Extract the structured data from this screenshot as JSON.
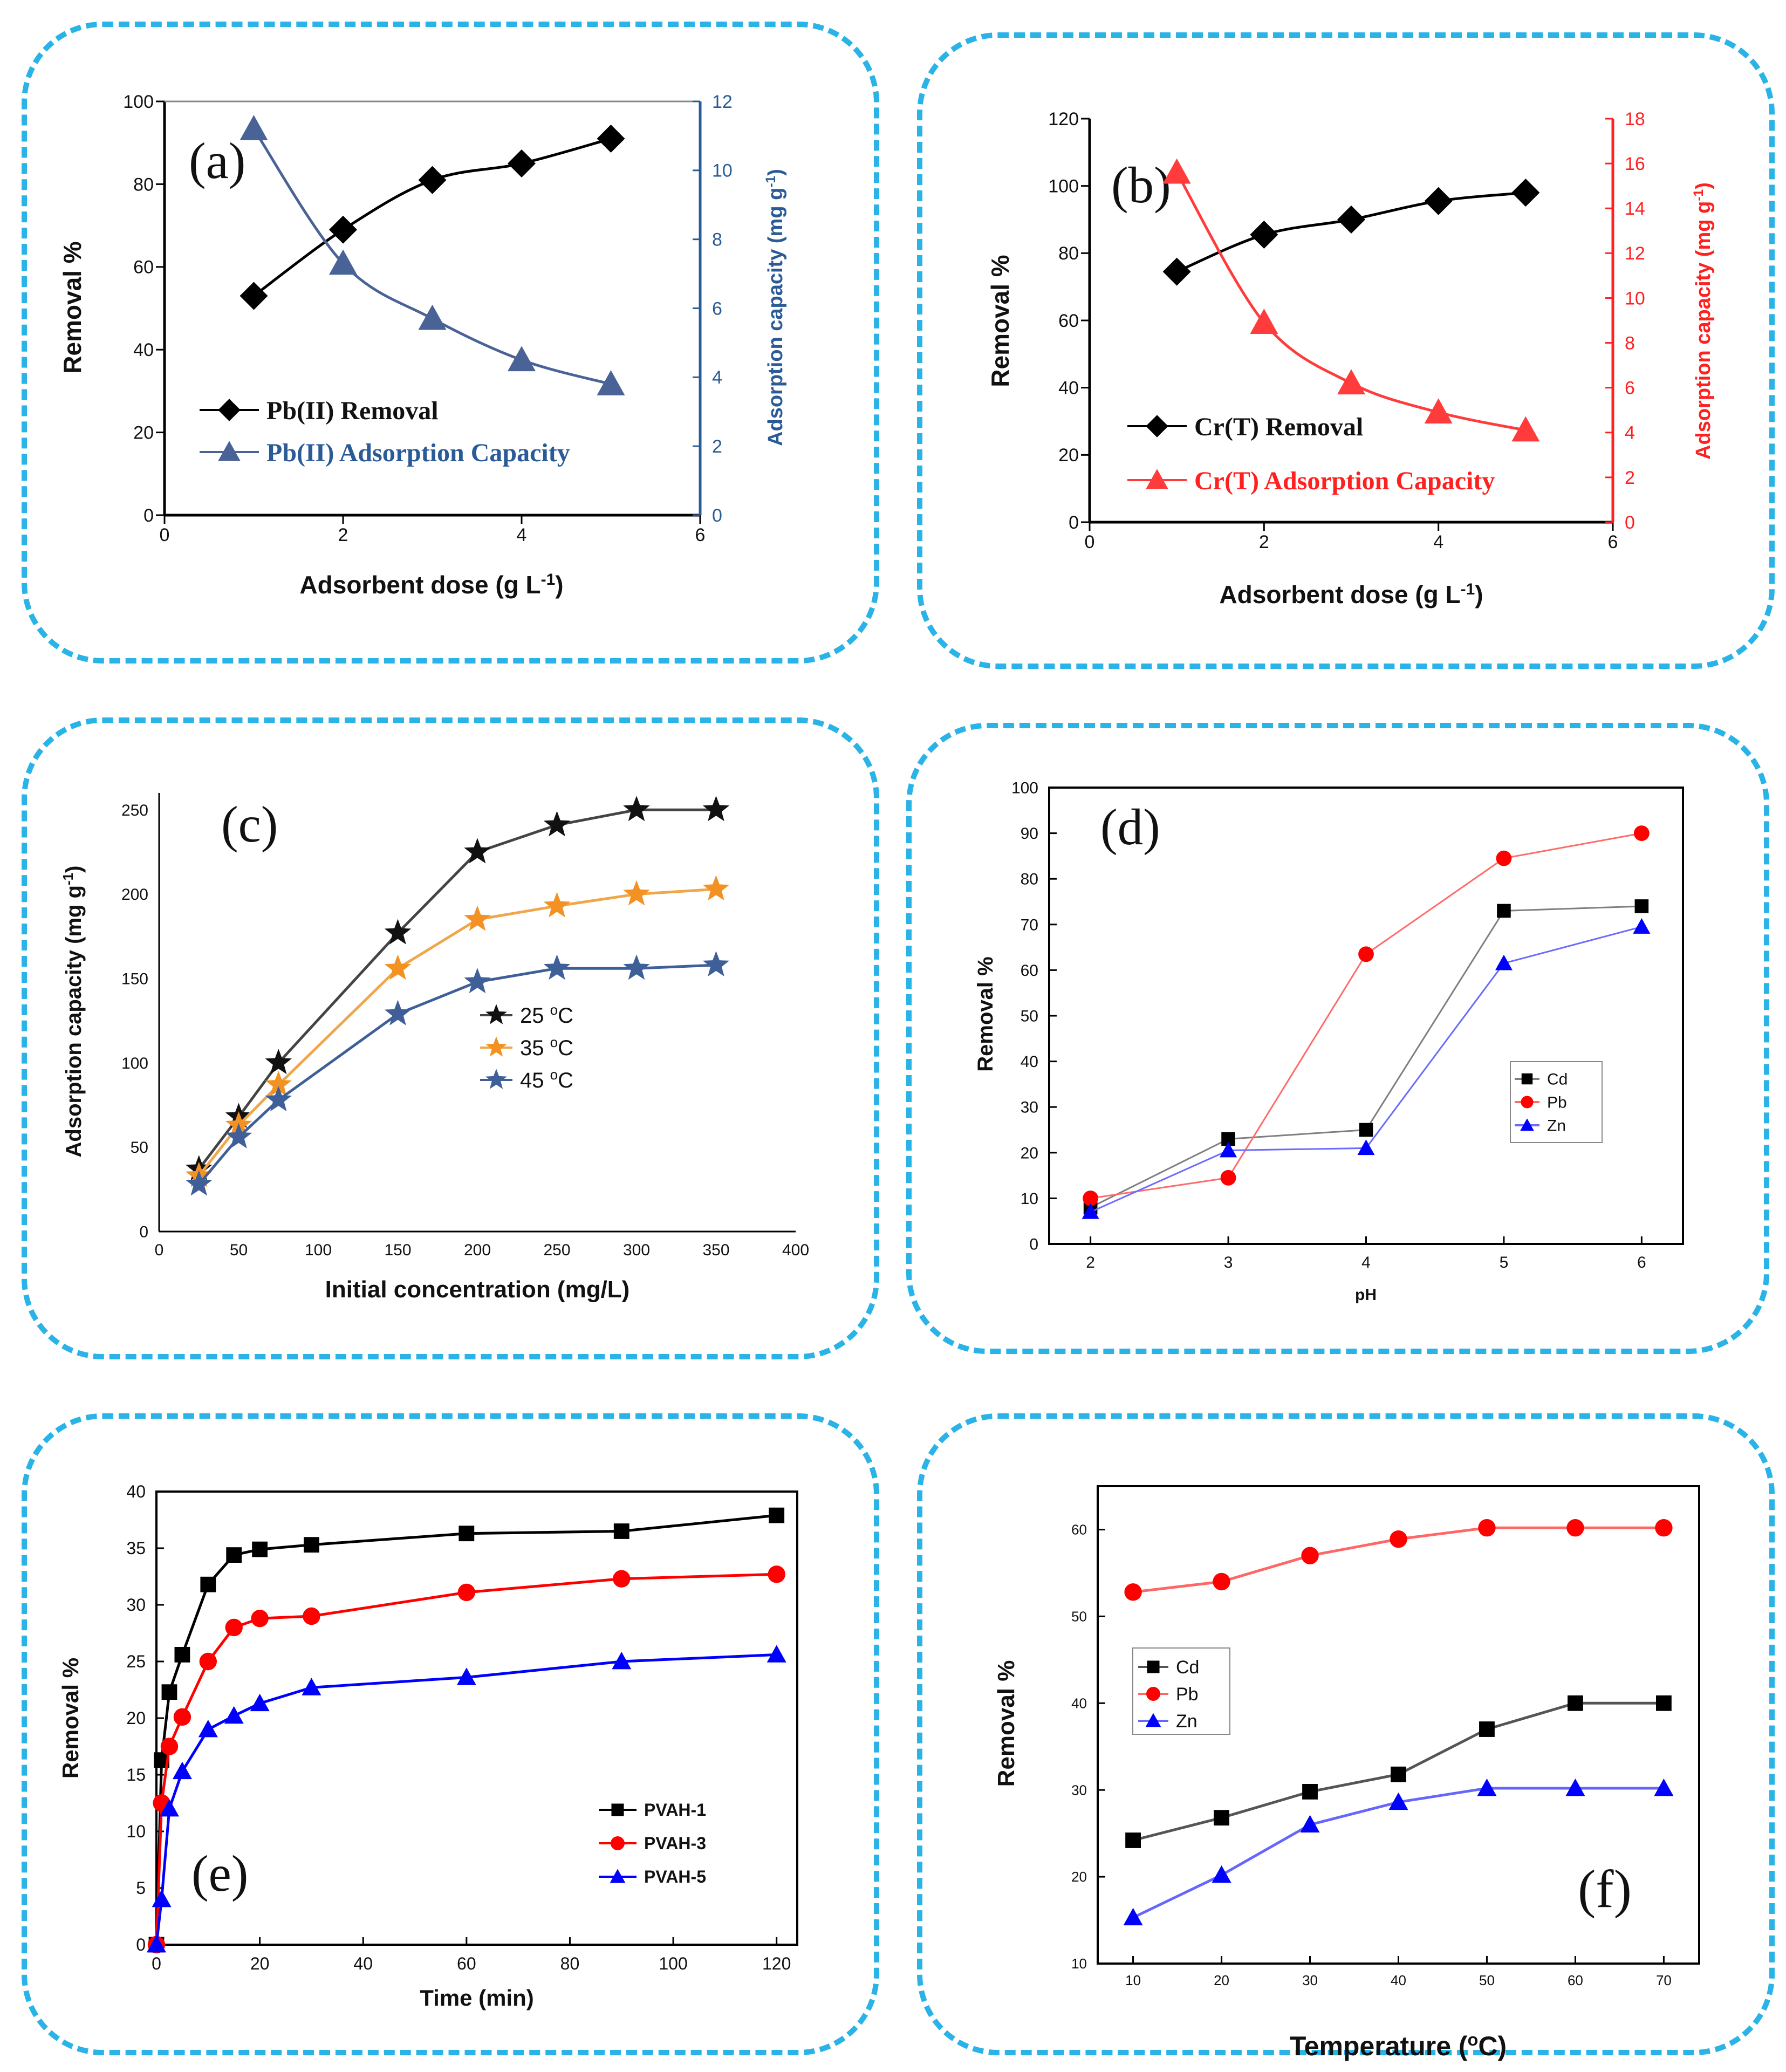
{
  "chart_data": [
    {
      "id": "a",
      "type": "line",
      "panel_label": "(a)",
      "xlabel": "Adsorbent dose (g L⁻¹)",
      "ylabel": "Removal %",
      "ylabel_right": "Adsorption capacity (mg g⁻¹)",
      "xlim": [
        0,
        6
      ],
      "ylim": [
        0,
        100
      ],
      "ylim_right": [
        0,
        12
      ],
      "xticks": [
        0,
        2,
        4,
        6
      ],
      "yticks": [
        0,
        20,
        40,
        60,
        80,
        100
      ],
      "yticks_right": [
        0,
        2,
        4,
        6,
        8,
        10,
        12
      ],
      "series": [
        {
          "name": "Pb(II) Removal",
          "axis": "left",
          "marker": "diamond",
          "color": "#000000",
          "x": [
            1,
            2,
            3,
            4,
            5
          ],
          "y": [
            53,
            69,
            81,
            85,
            91
          ]
        },
        {
          "name": "Pb(II) Adsorption Capacity",
          "axis": "right",
          "marker": "triangle",
          "color": "#4a6396",
          "x": [
            1,
            2,
            3,
            4,
            5
          ],
          "y": [
            11.2,
            7.3,
            5.7,
            4.5,
            3.8
          ]
        }
      ],
      "legend_position": "bottom-left",
      "legend_font": "serif",
      "colors": {
        "right_axis": "#2b5b97"
      }
    },
    {
      "id": "b",
      "type": "line",
      "panel_label": "(b)",
      "xlabel": "Adsorbent dose (g L⁻¹)",
      "ylabel": "Removal %",
      "ylabel_right": "Adsorption capacity (mg g⁻¹)",
      "xlim": [
        0,
        6
      ],
      "ylim": [
        0,
        120
      ],
      "ylim_right": [
        0,
        18
      ],
      "xticks": [
        0,
        2,
        4,
        6
      ],
      "yticks": [
        0,
        20,
        40,
        60,
        80,
        100,
        120
      ],
      "yticks_right": [
        0,
        2,
        4,
        6,
        8,
        10,
        12,
        14,
        16,
        18
      ],
      "series": [
        {
          "name": "Cr(T) Removal",
          "axis": "left",
          "marker": "diamond",
          "color": "#000000",
          "x": [
            1,
            2,
            3,
            4,
            5
          ],
          "y": [
            74.5,
            85.5,
            90,
            95.5,
            98
          ]
        },
        {
          "name": "Cr(T) Adsorption Capacity",
          "axis": "right",
          "marker": "triangle",
          "color": "#ff3b3b",
          "x": [
            1,
            2,
            3,
            4,
            5
          ],
          "y": [
            15.6,
            8.9,
            6.2,
            4.9,
            4.1
          ]
        }
      ],
      "legend_position": "bottom-left",
      "legend_font": "serif",
      "colors": {
        "right_axis": "#ff2020"
      }
    },
    {
      "id": "c",
      "type": "line",
      "panel_label": "(c)",
      "xlabel": "Initial concentration (mg/L)",
      "ylabel": "Adsorption capacity (mg g⁻¹)",
      "xlim": [
        0,
        400
      ],
      "ylim": [
        0,
        260
      ],
      "xticks": [
        0,
        50,
        100,
        150,
        200,
        250,
        300,
        350,
        400
      ],
      "yticks": [
        0,
        50,
        100,
        150,
        200,
        250
      ],
      "series": [
        {
          "name": "25 °C",
          "marker": "star",
          "color": "#444444",
          "marker_color": "#111111",
          "x": [
            25,
            50,
            75,
            150,
            200,
            250,
            300,
            350
          ],
          "y": [
            37,
            68,
            100,
            177,
            225,
            241,
            250,
            250
          ]
        },
        {
          "name": "35 °C",
          "marker": "star",
          "color": "#f0a64a",
          "marker_color": "#f39222",
          "x": [
            25,
            50,
            75,
            150,
            200,
            250,
            300,
            350
          ],
          "y": [
            33,
            63,
            87,
            156,
            185,
            193,
            200,
            203
          ]
        },
        {
          "name": "45 °C",
          "marker": "star",
          "color": "#3f5f99",
          "marker_color": "#3f5f99",
          "x": [
            25,
            50,
            75,
            150,
            200,
            250,
            300,
            350
          ],
          "y": [
            28,
            56,
            78,
            129,
            148,
            156,
            156,
            158
          ]
        }
      ],
      "legend_position": "center",
      "legend_font": "sans"
    },
    {
      "id": "d",
      "type": "line",
      "panel_label": "(d)",
      "xlabel": "pH",
      "ylabel": "Removal %",
      "xlim": [
        1.7,
        6.3
      ],
      "ylim": [
        0,
        100
      ],
      "xticks": [
        2,
        3,
        4,
        5,
        6
      ],
      "yticks": [
        0,
        10,
        20,
        30,
        40,
        50,
        60,
        70,
        80,
        90,
        100
      ],
      "series": [
        {
          "name": "Cd",
          "marker": "square",
          "color": "#7f7f7f",
          "marker_color": "#000000",
          "x": [
            2,
            3,
            4,
            5,
            6
          ],
          "y": [
            8,
            23,
            25,
            73,
            74
          ]
        },
        {
          "name": "Pb",
          "marker": "circle",
          "color": "#ff6b6b",
          "marker_color": "#ff0000",
          "x": [
            2,
            3,
            4,
            5,
            6
          ],
          "y": [
            10,
            14.5,
            63.5,
            84.5,
            90
          ]
        },
        {
          "name": "Zn",
          "marker": "triangle",
          "color": "#6b6bff",
          "marker_color": "#0000ff",
          "x": [
            2,
            3,
            4,
            5,
            6
          ],
          "y": [
            7,
            20.5,
            21,
            61.5,
            69.5
          ]
        }
      ],
      "legend_position": "right",
      "legend_font": "sans"
    },
    {
      "id": "e",
      "type": "line",
      "panel_label": "(e)",
      "xlabel": "Time (min)",
      "ylabel": "Removal %",
      "xlim": [
        0,
        124
      ],
      "ylim": [
        0,
        40
      ],
      "xticks": [
        0,
        20,
        40,
        60,
        80,
        100,
        120
      ],
      "yticks": [
        0,
        5,
        10,
        15,
        20,
        25,
        30,
        35,
        40
      ],
      "series": [
        {
          "name": "PVAH-1",
          "marker": "square",
          "color": "#000000",
          "marker_color": "#000000",
          "x": [
            0,
            1,
            2.5,
            5,
            10,
            15,
            20,
            30,
            60,
            90,
            120
          ],
          "y": [
            0,
            16.3,
            22.3,
            25.6,
            31.8,
            34.4,
            34.9,
            35.3,
            36.3,
            36.5,
            37.9
          ]
        },
        {
          "name": "PVAH-3",
          "marker": "circle",
          "color": "#ff0000",
          "marker_color": "#ff0000",
          "x": [
            0,
            1,
            2.5,
            5,
            10,
            15,
            20,
            30,
            60,
            90,
            120
          ],
          "y": [
            0,
            12.5,
            17.5,
            20.1,
            25,
            28,
            28.8,
            29,
            31.1,
            32.3,
            32.7
          ]
        },
        {
          "name": "PVAH-5",
          "marker": "triangle",
          "color": "#0000ff",
          "marker_color": "#0000ff",
          "x": [
            0,
            1,
            2.5,
            5,
            10,
            15,
            20,
            30,
            60,
            90,
            120
          ],
          "y": [
            0,
            4,
            12,
            15.3,
            19,
            20.2,
            21.3,
            22.7,
            23.6,
            25,
            25.6
          ]
        }
      ],
      "legend_position": "bottom-right",
      "legend_font": "sans"
    },
    {
      "id": "f",
      "type": "line",
      "panel_label": "(f)",
      "xlabel": "Temperature (°C)",
      "ylabel": "Removal %",
      "xlim": [
        6,
        74
      ],
      "ylim": [
        10,
        65
      ],
      "xticks": [
        10,
        20,
        30,
        40,
        50,
        60,
        70
      ],
      "yticks": [
        10,
        20,
        30,
        40,
        50,
        60
      ],
      "series": [
        {
          "name": "Cd",
          "marker": "square",
          "color": "#555555",
          "marker_color": "#000000",
          "x": [
            10,
            20,
            30,
            40,
            50,
            60,
            70
          ],
          "y": [
            24.2,
            26.8,
            29.8,
            31.8,
            37,
            40,
            40
          ]
        },
        {
          "name": "Pb",
          "marker": "circle",
          "color": "#ff6666",
          "marker_color": "#ff0000",
          "x": [
            10,
            20,
            30,
            40,
            50,
            60,
            70
          ],
          "y": [
            52.8,
            54,
            57,
            58.9,
            60.2,
            60.2,
            60.2
          ]
        },
        {
          "name": "Zn",
          "marker": "triangle",
          "color": "#6666ff",
          "marker_color": "#0000ff",
          "x": [
            10,
            20,
            30,
            40,
            50,
            60,
            70
          ],
          "y": [
            15.3,
            20.2,
            26,
            28.6,
            30.2,
            30.2,
            30.2
          ]
        }
      ],
      "legend_position": "left",
      "legend_font": "sans"
    }
  ]
}
